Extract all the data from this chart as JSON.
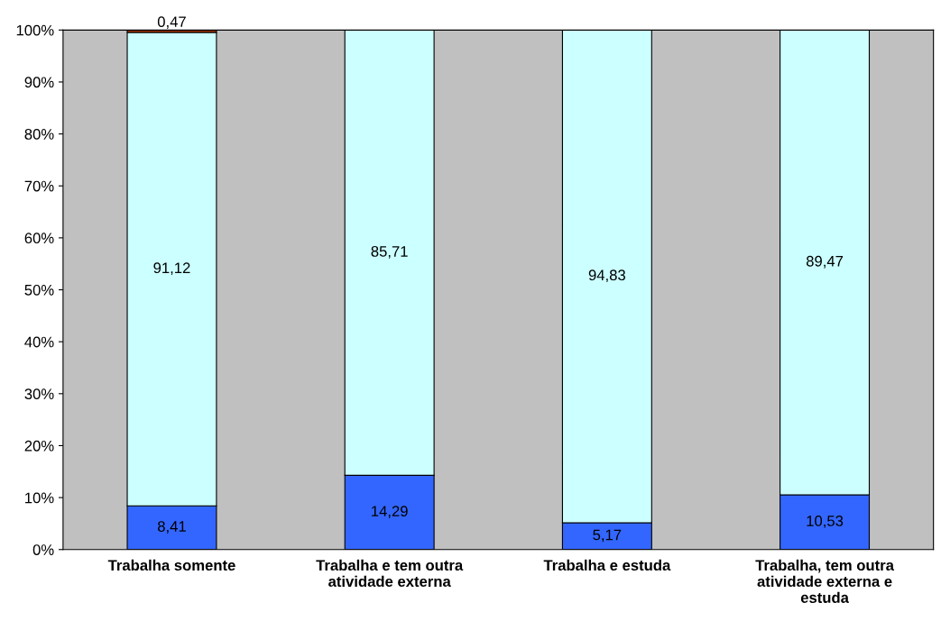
{
  "chart_data": {
    "type": "bar",
    "stacked": true,
    "categories": [
      "Trabalha somente",
      "Trabalha e tem outra atividade externa",
      "Trabalha e estuda",
      "Trabalha, tem outra atividade externa e estuda"
    ],
    "series": [
      {
        "color": "#3366ff",
        "values": [
          8.41,
          14.29,
          5.17,
          10.53
        ],
        "value_labels": [
          "8,41",
          "14,29",
          "5,17",
          "10,53"
        ]
      },
      {
        "color": "#ccffff",
        "values": [
          91.12,
          85.71,
          94.83,
          89.47
        ],
        "value_labels": [
          "91,12",
          "85,71",
          "94,83",
          "89,47"
        ]
      },
      {
        "color": "#993300",
        "values": [
          0.47,
          null,
          null,
          null
        ],
        "value_labels": [
          "0,47",
          null,
          null,
          null
        ]
      }
    ],
    "ylim": [
      0,
      100
    ],
    "yticks": [
      {
        "value": 0,
        "label": "0%"
      },
      {
        "value": 10,
        "label": "10%"
      },
      {
        "value": 20,
        "label": "20%"
      },
      {
        "value": 30,
        "label": "30%"
      },
      {
        "value": 40,
        "label": "40%"
      },
      {
        "value": 50,
        "label": "50%"
      },
      {
        "value": 60,
        "label": "60%"
      },
      {
        "value": 70,
        "label": "70%"
      },
      {
        "value": 80,
        "label": "80%"
      },
      {
        "value": 90,
        "label": "90%"
      },
      {
        "value": 100,
        "label": "100%"
      }
    ],
    "grid": false,
    "legend": false
  }
}
